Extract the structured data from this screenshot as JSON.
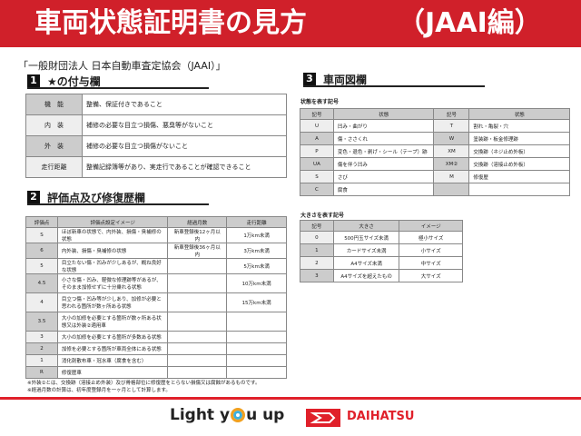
{
  "header": {
    "title": "車両状態証明書の見方",
    "suffix": "（JAAI編）"
  },
  "subtitle": "「一般財団法人 日本自動車査定協会（JAAI）」",
  "section1": {
    "num": "1",
    "title": "★の付与欄",
    "rows": [
      {
        "k": "機　能",
        "v": "整備、保証付きであること"
      },
      {
        "k": "内　装",
        "v": "補修の必要な目立つ損傷、悪臭等がないこと"
      },
      {
        "k": "外　装",
        "v": "補修の必要な目立つ損傷がないこと"
      },
      {
        "k": "走行距離",
        "v": "整備記録簿等があり、実走行であることが確認できること"
      }
    ]
  },
  "section2": {
    "num": "2",
    "title": "評価点及び修復歴欄",
    "headers": [
      "評価点",
      "評価点設定イメージ",
      "経過月数",
      "走行距離"
    ],
    "rows": [
      [
        "S",
        "ほぼ新車の状態で、内外装、損傷・臭補修の状態",
        "新車登録後12ヶ月以内",
        "1万km未満"
      ],
      [
        "6",
        "内外装、損傷・臭補修の状態",
        "新車登録後36ヶ月以内",
        "3万km未満"
      ],
      [
        "5",
        "目立たない傷・凹みが少しあるが、概ね良好な状態",
        "",
        "5万km未満"
      ],
      [
        "4.5",
        "小さな傷・凹み、軽微な修理跡等があるが、そのまま加修せずに十分乗れる状態",
        "",
        "10万km未満"
      ],
      [
        "4",
        "目立つ傷・凹み等が少しあり、加修が必要と思われる箇所が数ヶ所ある状態",
        "",
        "15万km未満"
      ],
      [
        "3.5",
        "大小の加修を必要とする箇所が数ヶ所ある状態又は外装②適用車",
        "",
        ""
      ],
      [
        "3",
        "大小の加修を必要とする箇所が多数ある状態",
        "",
        ""
      ],
      [
        "2",
        "加修を必要とする箇所が車両全体にある状態",
        "",
        ""
      ],
      [
        "1",
        "消化剤散布車・冠水車（腐食を含む）",
        "",
        ""
      ],
      [
        "R",
        "修復歴車",
        "",
        ""
      ]
    ]
  },
  "notes": [
    "※外装②とは、交換跡（溶接止め外装）及び骨格部位に修復歴をとらない損傷又は腐蝕があるものです。",
    "※経過月数の計算は、初年度登録月を一ヶ月として計算します。"
  ],
  "section3": {
    "num": "3",
    "title": "車両図欄",
    "state_label": "状態を表す記号",
    "state_headers": [
      "記号",
      "状態",
      "記号",
      "状態"
    ],
    "state_rows": [
      [
        "U",
        "凹み・曲がり",
        "T",
        "割れ・亀裂・穴"
      ],
      [
        "A",
        "傷・ささくれ",
        "W",
        "塗装跡・板金修理跡"
      ],
      [
        "P",
        "変色・退色・剥げ・シール（テープ）跡",
        "XM",
        "交換跡（ネジ止め外板）"
      ],
      [
        "UA",
        "傷を伴う凹み",
        "XM②",
        "交換跡（溶接止め外板）"
      ],
      [
        "S",
        "さび",
        "M",
        "修復歴"
      ],
      [
        "C",
        "腐食",
        "",
        ""
      ]
    ],
    "size_label": "大きさを表す記号",
    "size_headers": [
      "記号",
      "大きさ",
      "イメージ"
    ],
    "size_rows": [
      [
        "0",
        "500円玉サイズ未満",
        "極小サイズ"
      ],
      [
        "1",
        "カードサイズ未満",
        "小サイズ"
      ],
      [
        "2",
        "A4サイズ未満",
        "中サイズ"
      ],
      [
        "3",
        "A4サイズを超えたもの",
        "大サイズ"
      ]
    ]
  },
  "footer": {
    "slogan_pre": "Light y",
    "slogan_post": "u up",
    "brand": "DAIHATSU"
  },
  "colors": {
    "accent": "#d0202a"
  }
}
